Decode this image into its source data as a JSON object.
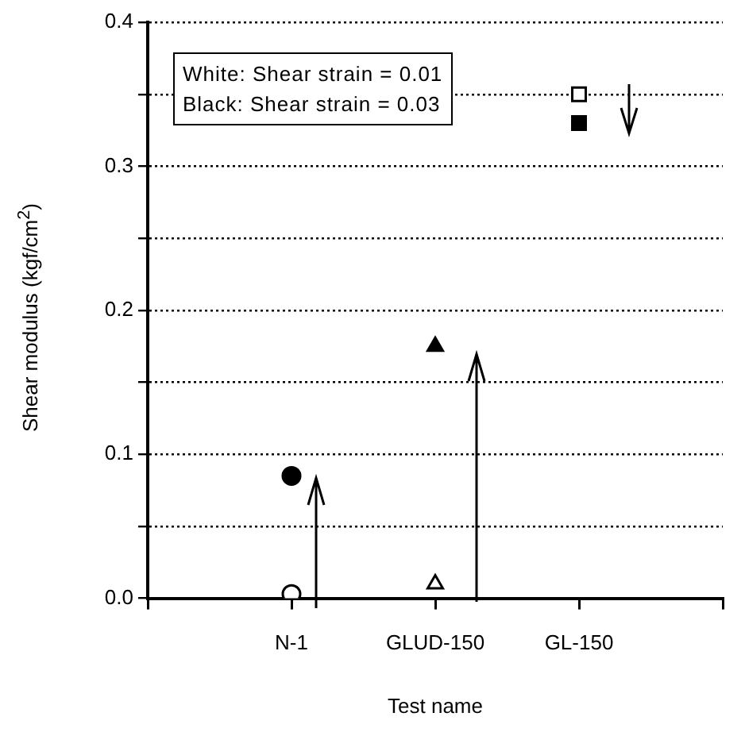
{
  "chart_data": {
    "type": "scatter",
    "xlabel": "Test name",
    "ylabel": "Shear modulus (kgf/cm$^{2}$)",
    "categories": [
      null,
      "N-1",
      "GLUD-150",
      "GL-150",
      null
    ],
    "series": [
      {
        "color": "#ffffff",
        "marker": "circle",
        "values": [
          null,
          0.003,
          null,
          null,
          null
        ]
      },
      {
        "color": "#000000",
        "marker": "circle",
        "values": [
          null,
          0.085,
          null,
          null,
          null
        ]
      },
      {
        "color": "#ffffff",
        "marker": "triangle",
        "values": [
          null,
          null,
          0.01,
          null,
          null
        ]
      },
      {
        "color": "#000000",
        "marker": "triangle",
        "values": [
          null,
          null,
          0.175,
          null,
          null
        ]
      },
      {
        "color": "#ffffff",
        "marker": "square",
        "values": [
          null,
          null,
          null,
          0.35,
          null
        ]
      },
      {
        "color": "#000000",
        "marker": "square",
        "values": [
          null,
          null,
          null,
          0.33,
          null
        ]
      }
    ],
    "ylim": [
      0,
      0.4
    ],
    "yticks": [
      {
        "value": 0,
        "label": "0.0"
      },
      {
        "value": 0.05,
        "label": null
      },
      0.1,
      {
        "value": 0.15,
        "label": null
      },
      0.2,
      {
        "value": 0.25,
        "label": null
      },
      0.3,
      {
        "value": 0.35,
        "label": null
      },
      0.4
    ],
    "grid": "y",
    "legend": false,
    "annotations": [
      "White: Shear strain = 0.01",
      "Black: Shear strain = 0.03"
    ]
  }
}
